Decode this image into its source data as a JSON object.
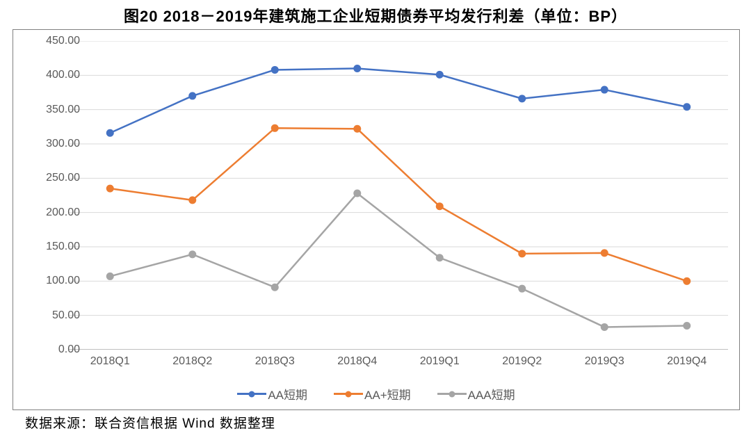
{
  "title": "图20  2018－2019年建筑施工企业短期债券平均发行利差（单位：BP）",
  "source": "数据来源：联合资信根据 Wind 数据整理",
  "chart": {
    "type": "line",
    "background_color": "#ffffff",
    "border_color": "#808080",
    "grid_color": "#d9d9d9",
    "axis_line_color": "#bfbfbf",
    "tick_label_color": "#595959",
    "tick_fontsize": 16,
    "title_fontsize": 22,
    "ylim": [
      0,
      450
    ],
    "ytick_step": 50,
    "yticks": [
      "0.00",
      "50.00",
      "100.00",
      "150.00",
      "200.00",
      "250.00",
      "300.00",
      "350.00",
      "400.00",
      "450.00"
    ],
    "categories": [
      "2018Q1",
      "2018Q2",
      "2018Q3",
      "2018Q4",
      "2019Q1",
      "2019Q2",
      "2019Q3",
      "2019Q4"
    ],
    "line_width": 2.5,
    "marker_radius": 5.5,
    "series": [
      {
        "name": "AA短期",
        "color": "#4472c4",
        "values": [
          316,
          370,
          408,
          410,
          401,
          366,
          379,
          354
        ]
      },
      {
        "name": "AA+短期",
        "color": "#ed7d31",
        "values": [
          235,
          218,
          323,
          322,
          209,
          140,
          141,
          100
        ]
      },
      {
        "name": "AAA短期",
        "color": "#a5a5a5",
        "values": [
          107,
          139,
          91,
          228,
          134,
          89,
          33,
          35
        ]
      }
    ],
    "legend_position": "bottom"
  }
}
